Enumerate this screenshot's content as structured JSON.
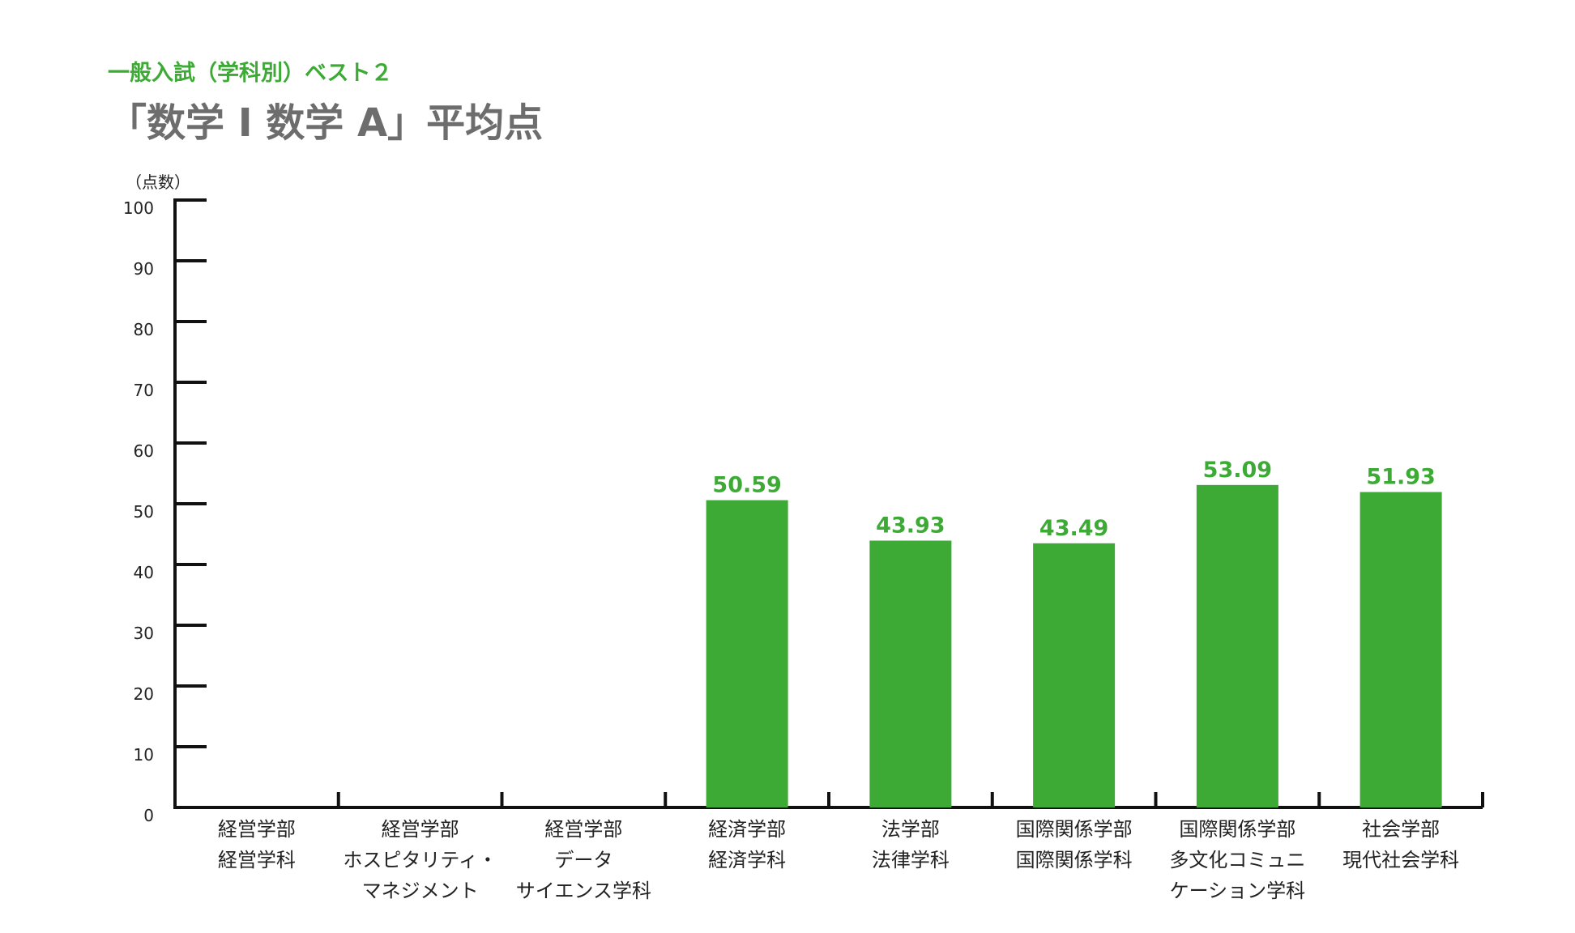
{
  "header": {
    "subtitle": "一般入試（学科別）ベスト２",
    "title": "「数学 I 数学 A」平均点"
  },
  "colors": {
    "accent": "#3daa36",
    "title_gray": "#6d6d6d",
    "axis": "#111111",
    "bar": "#3daa36"
  },
  "chart_data": {
    "type": "bar",
    "y_unit_label": "（点数）",
    "ylim": [
      0,
      100
    ],
    "yticks": [
      0,
      10,
      20,
      30,
      40,
      50,
      60,
      70,
      80,
      90,
      100
    ],
    "grid": false,
    "categories": [
      [
        "経営学部",
        "経営学科"
      ],
      [
        "経営学部",
        "ホスピタリティ・",
        "マネジメント"
      ],
      [
        "経営学部",
        "データ",
        "サイエンス学科"
      ],
      [
        "経済学部",
        "経済学科"
      ],
      [
        "法学部",
        "法律学科"
      ],
      [
        "国際関係学部",
        "国際関係学科"
      ],
      [
        "国際関係学部",
        "多文化コミュニ",
        "ケーション学科"
      ],
      [
        "社会学部",
        "現代社会学科"
      ]
    ],
    "values": [
      null,
      null,
      null,
      50.59,
      43.93,
      43.49,
      53.09,
      51.93
    ],
    "value_labels": [
      "",
      "",
      "",
      "50.59",
      "43.93",
      "43.49",
      "53.09",
      "51.93"
    ]
  }
}
